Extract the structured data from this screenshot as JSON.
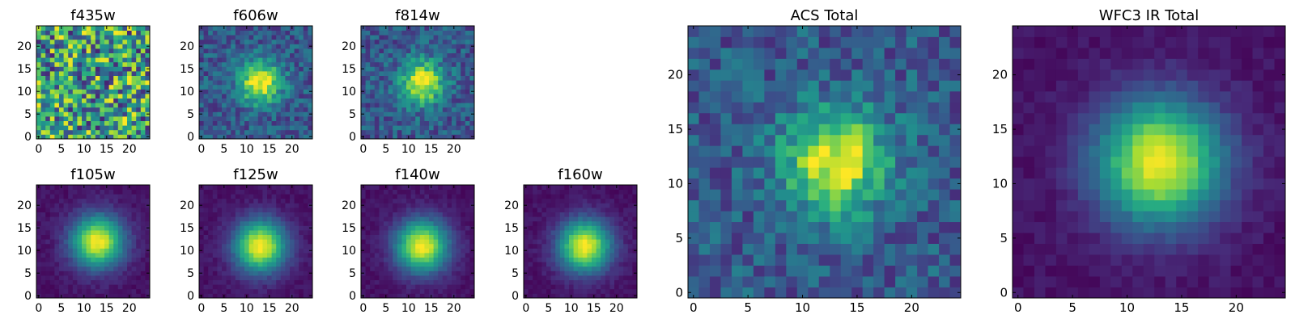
{
  "chart_data": [
    {
      "type": "heatmap",
      "title": "f435w",
      "xticks": [
        "0",
        "5",
        "10",
        "15",
        "20"
      ],
      "yticks": [
        "0",
        "5",
        "10",
        "15",
        "20"
      ],
      "xlim": [
        -0.5,
        24.5
      ],
      "ylim": [
        -0.5,
        24.5
      ],
      "grid_size": 25,
      "colormap": "viridis",
      "pattern": "noise",
      "peak": [
        13,
        12
      ]
    },
    {
      "type": "heatmap",
      "title": "f606w",
      "xticks": [
        "0",
        "5",
        "10",
        "15",
        "20"
      ],
      "yticks": [
        "0",
        "5",
        "10",
        "15",
        "20"
      ],
      "xlim": [
        -0.5,
        24.5
      ],
      "ylim": [
        -0.5,
        24.5
      ],
      "grid_size": 25,
      "colormap": "viridis",
      "pattern": "noisy_peak",
      "peak": [
        13,
        12
      ]
    },
    {
      "type": "heatmap",
      "title": "f814w",
      "xticks": [
        "0",
        "5",
        "10",
        "15",
        "20"
      ],
      "yticks": [
        "0",
        "5",
        "10",
        "15",
        "20"
      ],
      "xlim": [
        -0.5,
        24.5
      ],
      "ylim": [
        -0.5,
        24.5
      ],
      "grid_size": 25,
      "colormap": "viridis",
      "pattern": "noisy_peak",
      "peak": [
        13,
        12
      ]
    },
    {
      "type": "heatmap",
      "title": "f105w",
      "xticks": [
        "0",
        "5",
        "10",
        "15",
        "20"
      ],
      "yticks": [
        "0",
        "5",
        "10",
        "15",
        "20"
      ],
      "xlim": [
        -0.5,
        24.5
      ],
      "ylim": [
        -0.5,
        24.5
      ],
      "grid_size": 25,
      "colormap": "viridis",
      "pattern": "smooth_peak",
      "peak": [
        13,
        12
      ]
    },
    {
      "type": "heatmap",
      "title": "f125w",
      "xticks": [
        "0",
        "5",
        "10",
        "15",
        "20"
      ],
      "yticks": [
        "0",
        "5",
        "10",
        "15",
        "20"
      ],
      "xlim": [
        -0.5,
        24.5
      ],
      "ylim": [
        -0.5,
        24.5
      ],
      "grid_size": 25,
      "colormap": "viridis",
      "pattern": "smooth_peak",
      "peak": [
        13,
        11
      ]
    },
    {
      "type": "heatmap",
      "title": "f140w",
      "xticks": [
        "0",
        "5",
        "10",
        "15",
        "20"
      ],
      "yticks": [
        "0",
        "5",
        "10",
        "15",
        "20"
      ],
      "xlim": [
        -0.5,
        24.5
      ],
      "ylim": [
        -0.5,
        24.5
      ],
      "grid_size": 25,
      "colormap": "viridis",
      "pattern": "smooth_peak",
      "peak": [
        13,
        11
      ]
    },
    {
      "type": "heatmap",
      "title": "f160w",
      "xticks": [
        "0",
        "5",
        "10",
        "15",
        "20"
      ],
      "yticks": [
        "0",
        "5",
        "10",
        "15",
        "20"
      ],
      "xlim": [
        -0.5,
        24.5
      ],
      "ylim": [
        -0.5,
        24.5
      ],
      "grid_size": 25,
      "colormap": "viridis",
      "pattern": "smooth_peak",
      "peak": [
        13,
        11
      ]
    },
    {
      "type": "heatmap",
      "title": "ACS Total",
      "xticks": [
        "0",
        "5",
        "10",
        "15",
        "20"
      ],
      "yticks": [
        "0",
        "5",
        "10",
        "15",
        "20"
      ],
      "xlim": [
        -0.5,
        24.5
      ],
      "ylim": [
        -0.5,
        24.5
      ],
      "grid_size": 25,
      "colormap": "viridis",
      "pattern": "noisy_peak",
      "peak": [
        13,
        12
      ]
    },
    {
      "type": "heatmap",
      "title": "WFC3 IR Total",
      "xticks": [
        "0",
        "5",
        "10",
        "15",
        "20"
      ],
      "yticks": [
        "0",
        "5",
        "10",
        "15",
        "20"
      ],
      "xlim": [
        -0.5,
        24.5
      ],
      "ylim": [
        -0.5,
        24.5
      ],
      "grid_size": 25,
      "colormap": "viridis",
      "pattern": "smooth_peak",
      "peak": [
        13,
        12
      ]
    }
  ]
}
